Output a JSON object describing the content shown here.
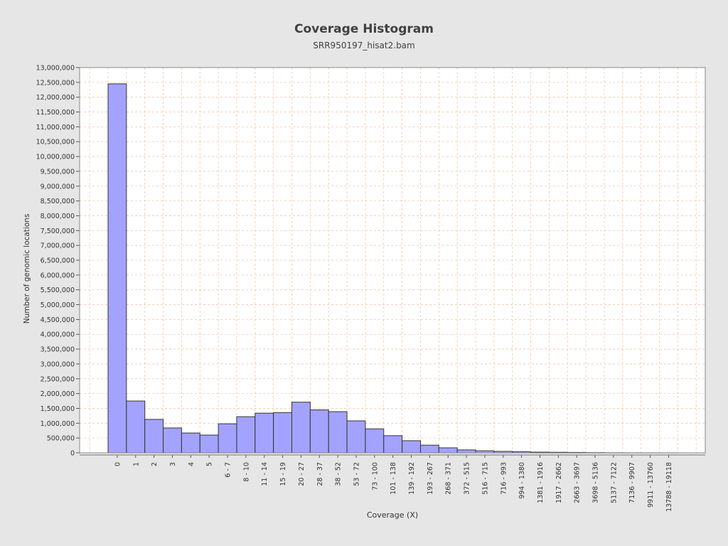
{
  "chart_data": {
    "type": "bar",
    "title": "Coverage Histogram",
    "subtitle": "SRR950197_hisat2.bam",
    "xlabel": "Coverage (X)",
    "ylabel": "Number of genomic locations",
    "ylim": [
      0,
      13000000
    ],
    "ytick_step": 500000,
    "grid": true,
    "legend": "none",
    "colors": {
      "bar": "#a3a3ff",
      "bar_edge": "#333333",
      "grid": "#f0c8a8",
      "plot_bg": "#ffffff",
      "page_bg": "#e6e6e6"
    },
    "categories": [
      "0",
      "1",
      "2",
      "3",
      "4",
      "5",
      "6 - 7",
      "8 - 10",
      "11 - 14",
      "15 - 19",
      "20 - 27",
      "28 - 37",
      "38 - 52",
      "53 - 72",
      "73 - 100",
      "101 - 138",
      "139 - 192",
      "193 - 267",
      "268 - 371",
      "372 - 515",
      "516 - 715",
      "716 - 993",
      "994 - 1380",
      "1381 - 1916",
      "1917 - 2662",
      "2663 - 3697",
      "3698 - 5136",
      "5137 - 7122",
      "7136 - 9907",
      "9911 - 13760",
      "13788 - 19118"
    ],
    "values": [
      12450000,
      1750000,
      1130000,
      840000,
      670000,
      600000,
      980000,
      1220000,
      1340000,
      1360000,
      1710000,
      1450000,
      1390000,
      1080000,
      810000,
      580000,
      410000,
      260000,
      170000,
      100000,
      70000,
      50000,
      40000,
      25000,
      20000,
      15000,
      8000,
      5000,
      3000,
      2000,
      1500
    ]
  }
}
